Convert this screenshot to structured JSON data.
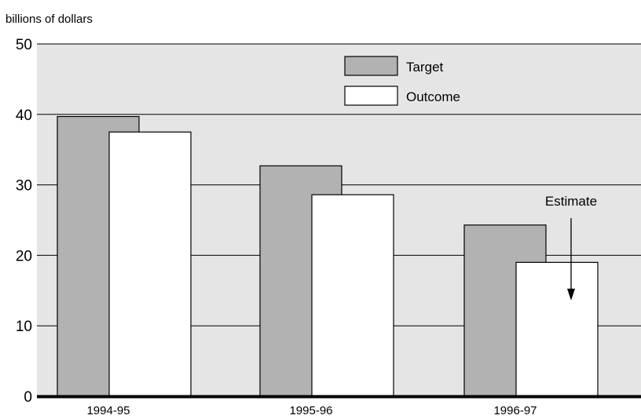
{
  "chart_data": {
    "type": "bar",
    "y_unit_label": "billions of dollars",
    "categories": [
      "1994-95",
      "1995-96",
      "1996-97"
    ],
    "series": [
      {
        "name": "Target",
        "color": "#b2b2b2",
        "values": [
          39.7,
          32.7,
          24.3
        ]
      },
      {
        "name": "Outcome",
        "color": "#ffffff",
        "values": [
          37.5,
          28.6,
          19.0
        ]
      }
    ],
    "ylim": [
      0,
      50
    ],
    "yticks": [
      "0",
      "10",
      "20",
      "30",
      "40",
      "50"
    ],
    "grid": true,
    "background_color": "#e5e5e5",
    "legend_position": "top-center",
    "annotation": {
      "text": "Estimate",
      "category": "1996-97",
      "series": "Outcome",
      "arrow_to_value": 13.6
    }
  }
}
